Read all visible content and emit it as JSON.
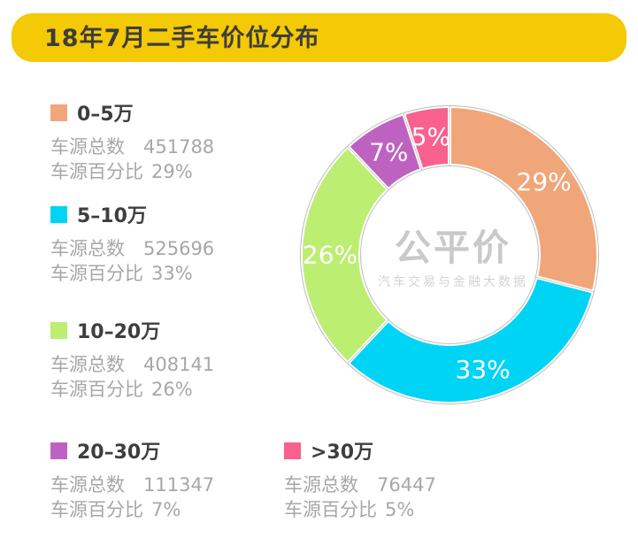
{
  "header": {
    "title": "18年7月二手车价位分布"
  },
  "watermark": {
    "logo": "公平价",
    "tagline": "汽车交易与金融大数据"
  },
  "colors": {
    "header_bg": "#F4C906",
    "title_text": "#3D3D3D",
    "legend_value_text": "#A7A7A7",
    "ring_outline": "#BDBDBD",
    "slice_label_text": "#FFFFFF"
  },
  "legend": {
    "items": [
      {
        "label": "0–5万",
        "color": "#F0A678",
        "total_label": "车源总数",
        "total": "451788",
        "percent_label": "车源百分比",
        "percent": "29%"
      },
      {
        "label": "5–10万",
        "color": "#00D4F4",
        "total_label": "车源总数",
        "total": "525696",
        "percent_label": "车源百分比",
        "percent": "33%"
      },
      {
        "label": "10–20万",
        "color": "#BCEE72",
        "total_label": "车源总数",
        "total": "408141",
        "percent_label": "车源百分比",
        "percent": "26%"
      },
      {
        "label": "20–30万",
        "color": "#BE62C2",
        "total_label": "车源总数",
        "total": "111347",
        "percent_label": "车源百分比",
        "percent": "7%"
      },
      {
        "label": ">30万",
        "color": "#F8618D",
        "total_label": "车源总数",
        "total": "76447",
        "percent_label": "车源百分比",
        "percent": "5%"
      }
    ]
  },
  "chart_data": {
    "type": "pie",
    "donut": true,
    "title": "18年7月二手车价位分布",
    "start_angle_deg": 0,
    "direction": "clockwise",
    "legend_position": "left",
    "categories": [
      "0–5万",
      "5–10万",
      "10–20万",
      "20–30万",
      ">30万"
    ],
    "values": [
      451788,
      525696,
      408141,
      111347,
      76447
    ],
    "percentages": [
      29,
      33,
      26,
      7,
      5
    ],
    "slice_labels": [
      "29%",
      "33%",
      "26%",
      "7%",
      "5%"
    ],
    "colors": [
      "#F0A678",
      "#00D4F4",
      "#BCEE72",
      "#BE62C2",
      "#F8618D"
    ]
  }
}
